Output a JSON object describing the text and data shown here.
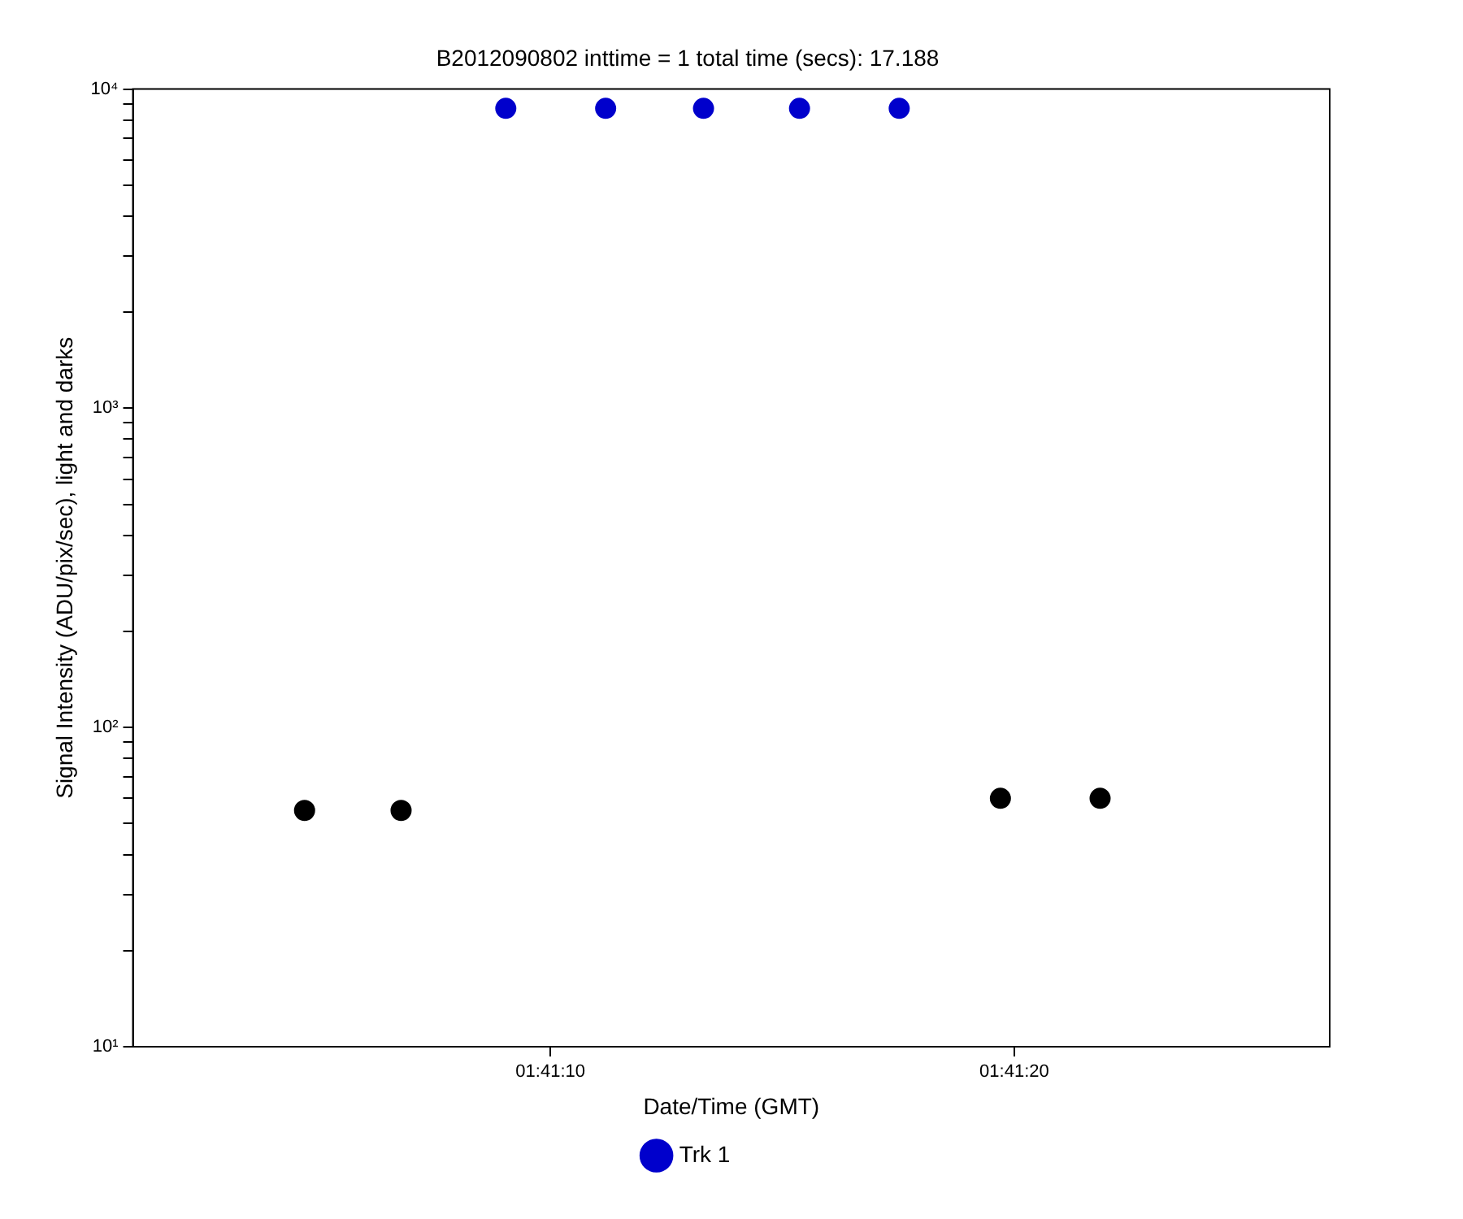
{
  "chart_data": {
    "type": "scatter",
    "title": "B2012090802 inttime = 1 total time (secs): 17.188",
    "xlabel": "Date/Time (GMT)",
    "ylabel": "Signal Intensity (ADU/pix/sec), light and darks",
    "series": [
      {
        "name": "Trk 1",
        "color": "#0000cc",
        "x": [
          1.685844,
          1.686442,
          1.687028,
          1.687603,
          1.6882
        ],
        "values": [
          8700,
          8700,
          8700,
          8700,
          8700
        ]
      },
      {
        "color": "#000000",
        "x": [
          1.684639,
          1.685217,
          1.688806,
          1.689403
        ],
        "values": [
          55,
          55,
          60,
          60
        ]
      }
    ],
    "xlim": [
      1.683611,
      1.690778
    ],
    "xticks": [
      {
        "value": 1.686111,
        "label": "01:41:10"
      },
      {
        "value": 1.688889,
        "label": "01:41:20"
      }
    ],
    "ylim": [
      10,
      10000
    ],
    "log": "y",
    "yticks": [
      {
        "value": 10,
        "label": "10¹"
      },
      {
        "value": 20,
        "label": null
      },
      {
        "value": 30,
        "label": null
      },
      {
        "value": 40,
        "label": null
      },
      {
        "value": 50,
        "label": null
      },
      {
        "value": 60,
        "label": null
      },
      {
        "value": 70,
        "label": null
      },
      {
        "value": 80,
        "label": null
      },
      {
        "value": 90,
        "label": null
      },
      {
        "value": 100,
        "label": "10²"
      },
      {
        "value": 200,
        "label": null
      },
      {
        "value": 300,
        "label": null
      },
      {
        "value": 400,
        "label": null
      },
      {
        "value": 500,
        "label": null
      },
      {
        "value": 600,
        "label": null
      },
      {
        "value": 700,
        "label": null
      },
      {
        "value": 800,
        "label": null
      },
      {
        "value": 900,
        "label": null
      },
      {
        "value": 1000,
        "label": "10³"
      },
      {
        "value": 2000,
        "label": null
      },
      {
        "value": 3000,
        "label": null
      },
      {
        "value": 4000,
        "label": null
      },
      {
        "value": 5000,
        "label": null
      },
      {
        "value": 6000,
        "label": null
      },
      {
        "value": 7000,
        "label": null
      },
      {
        "value": 8000,
        "label": null
      },
      {
        "value": 9000,
        "label": null
      },
      {
        "value": 10000,
        "label": "10⁴"
      }
    ],
    "grid": false,
    "legend": "bottom",
    "marker": "circle"
  }
}
